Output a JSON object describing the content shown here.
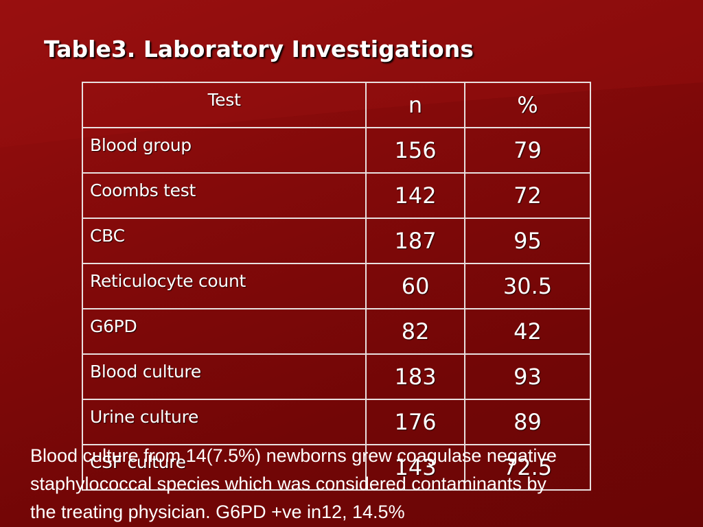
{
  "slide": {
    "title": "Table3. Laboratory Investigations",
    "colors": {
      "background": "#7a0a0a",
      "text": "#ffffff",
      "border": "#ffffff"
    }
  },
  "table": {
    "headers": {
      "test": "Test",
      "n": "n",
      "pct": "%"
    },
    "rows": [
      {
        "test": "Blood group",
        "n": "156",
        "pct": "79"
      },
      {
        "test": "Coombs test",
        "n": "142",
        "pct": "72"
      },
      {
        "test": "CBC",
        "n": "187",
        "pct": "95"
      },
      {
        "test": "Reticulocyte count",
        "n": "60",
        "pct": "30.5"
      },
      {
        "test": "G6PD",
        "n": "82",
        "pct": "42"
      },
      {
        "test": "Blood culture",
        "n": "183",
        "pct": "93"
      },
      {
        "test": "Urine culture",
        "n": "176",
        "pct": "89"
      },
      {
        "test": "CSF  culture",
        "n": "143",
        "pct": "72.5"
      }
    ]
  },
  "footnote": {
    "line1": "Blood culture from 14(7.5%) newborns grew coagulase negative",
    "line2": "staphylococcal species which was considered contaminants by",
    "line3": "the treating physician.   G6PD +ve in12,  14.5%"
  }
}
